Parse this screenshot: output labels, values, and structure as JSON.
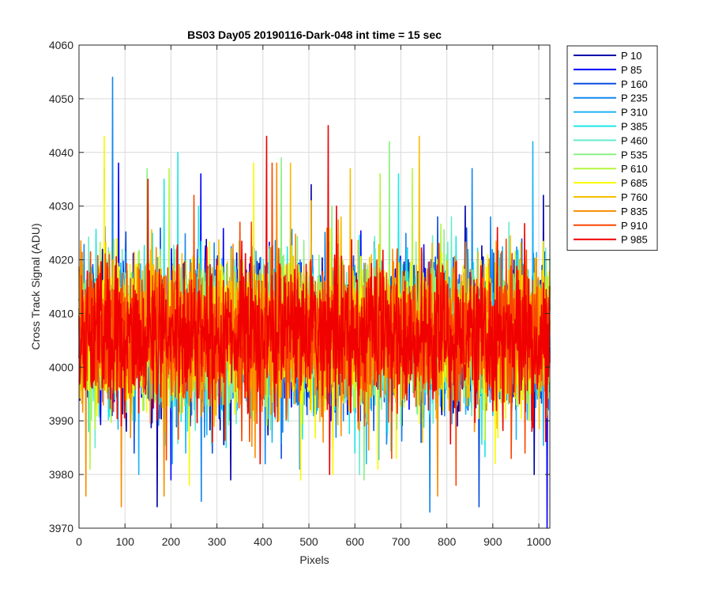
{
  "chart_data": {
    "type": "line",
    "title": "BS03 Day05 20190116-Dark-048 int time = 15 sec",
    "xlabel": "Pixels",
    "ylabel": "Cross Track Signal (ADU)",
    "xlim": [
      0,
      1024
    ],
    "ylim": [
      3970,
      4060
    ],
    "xticks": [
      0,
      100,
      200,
      300,
      400,
      500,
      600,
      700,
      800,
      900,
      1000
    ],
    "yticks": [
      3970,
      3980,
      3990,
      4000,
      4010,
      4020,
      4030,
      4040,
      4050,
      4060
    ],
    "grid": true,
    "legend_position": "outside-top-right",
    "series": [
      {
        "name": "P 10",
        "color": "#0000a6",
        "mean": 4006,
        "spread": 6.5,
        "peaks": [
          [
            170,
            3974
          ],
          [
            990,
            3980
          ],
          [
            1010,
            4032
          ],
          [
            840,
            4030
          ],
          [
            462,
            4025
          ],
          [
            505,
            4034
          ],
          [
            330,
            3979
          ]
        ]
      },
      {
        "name": "P 85",
        "color": "#0000ff",
        "mean": 4006,
        "spread": 6.5,
        "peaks": [
          [
            1018,
            3970
          ],
          [
            86,
            4038
          ],
          [
            265,
            4036
          ],
          [
            200,
            3979
          ],
          [
            612,
            3990
          ],
          [
            548,
            3990
          ]
        ]
      },
      {
        "name": "P 160",
        "color": "#0a4fe0",
        "mean": 4006,
        "spread": 6.5,
        "peaks": [
          [
            290,
            3984
          ],
          [
            870,
            3974
          ],
          [
            440,
            3983
          ],
          [
            700,
            3990
          ],
          [
            120,
            3984
          ]
        ]
      },
      {
        "name": "P 235",
        "color": "#1387ee",
        "mean": 4006,
        "spread": 6.5,
        "peaks": [
          [
            73,
            4054
          ],
          [
            763,
            3973
          ],
          [
            55,
            4037
          ],
          [
            855,
            4037
          ],
          [
            405,
            3982
          ],
          [
            480,
            3981
          ],
          [
            266,
            3975
          ],
          [
            575,
            3990
          ]
        ]
      },
      {
        "name": "P 310",
        "color": "#1fb2f5",
        "mean": 4006,
        "spread": 6.5,
        "peaks": [
          [
            987,
            4042
          ],
          [
            232,
            3984
          ],
          [
            130,
            3980
          ],
          [
            625,
            3982
          ],
          [
            900,
            3991
          ],
          [
            420,
            3986
          ]
        ]
      },
      {
        "name": "P 385",
        "color": "#20e6e6",
        "mean": 4006,
        "spread": 6.5,
        "peaks": [
          [
            215,
            4040
          ],
          [
            695,
            4036
          ],
          [
            185,
            4035
          ],
          [
            260,
            4030
          ],
          [
            320,
            3985
          ],
          [
            600,
            3984
          ]
        ]
      },
      {
        "name": "P 460",
        "color": "#66eccc",
        "mean": 4006,
        "spread": 6.5,
        "peaks": [
          [
            610,
            3980
          ],
          [
            35,
            3985
          ],
          [
            450,
            3990
          ],
          [
            810,
            4028
          ],
          [
            935,
            4027
          ]
        ]
      },
      {
        "name": "P 535",
        "color": "#8bf083",
        "mean": 4006,
        "spread": 6.5,
        "peaks": [
          [
            148,
            4037
          ],
          [
            440,
            4039
          ],
          [
            675,
            4042
          ],
          [
            620,
            3979
          ],
          [
            550,
            4030
          ],
          [
            60,
            4020
          ]
        ]
      },
      {
        "name": "P 610",
        "color": "#b5f53d",
        "mean": 4006,
        "spread": 6.5,
        "peaks": [
          [
            24,
            3981
          ],
          [
            196,
            4037
          ],
          [
            655,
            4036
          ],
          [
            725,
            4037
          ],
          [
            1030,
            4031
          ],
          [
            380,
            3990
          ]
        ]
      },
      {
        "name": "P 685",
        "color": "#fafa00",
        "mean": 4006,
        "spread": 6.5,
        "peaks": [
          [
            55,
            4043
          ],
          [
            240,
            3978
          ],
          [
            482,
            3979
          ],
          [
            552,
            3980
          ],
          [
            650,
            3981
          ],
          [
            380,
            4038
          ],
          [
            905,
            3982
          ],
          [
            690,
            3983
          ]
        ]
      },
      {
        "name": "P 760",
        "color": "#f5be00",
        "mean": 4006,
        "spread": 6.5,
        "peaks": [
          [
            740,
            4043
          ],
          [
            590,
            4037
          ],
          [
            460,
            4038
          ],
          [
            505,
            4031
          ],
          [
            330,
            4022
          ]
        ]
      },
      {
        "name": "P 835",
        "color": "#fa8c00",
        "mean": 4006,
        "spread": 6.5,
        "peaks": [
          [
            92,
            3974
          ],
          [
            15,
            3976
          ],
          [
            185,
            3976
          ],
          [
            780,
            3976
          ],
          [
            430,
            4038
          ],
          [
            860,
            3988
          ]
        ]
      },
      {
        "name": "P 910",
        "color": "#fa4600",
        "mean": 4006,
        "spread": 6.5,
        "peaks": [
          [
            420,
            4038
          ],
          [
            820,
            3978
          ],
          [
            250,
            4032
          ],
          [
            680,
            3983
          ],
          [
            970,
            3984
          ],
          [
            350,
            4027
          ]
        ]
      },
      {
        "name": "P 985",
        "color": "#f00000",
        "mean": 4006,
        "spread": 6.5,
        "peaks": [
          [
            542,
            4045
          ],
          [
            408,
            4043
          ],
          [
            545,
            3980
          ],
          [
            150,
            4035
          ],
          [
            290,
            3986
          ],
          [
            560,
            4030
          ],
          [
            910,
            4026
          ],
          [
            760,
            3992
          ]
        ]
      }
    ]
  }
}
